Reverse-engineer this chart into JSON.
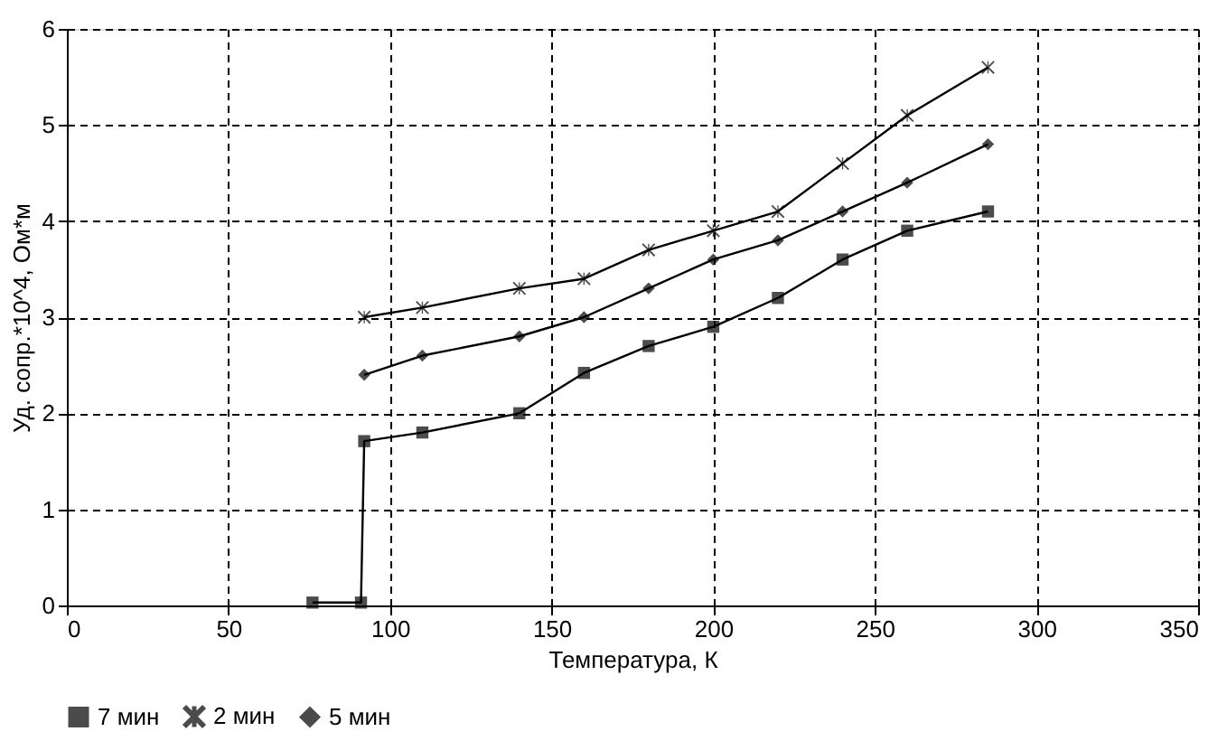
{
  "chart_data": {
    "type": "line",
    "xlabel": "Температура, К",
    "ylabel": "Уд. сопр.*10^4, Ом*м",
    "x": [
      76,
      91,
      92,
      110,
      140,
      160,
      180,
      200,
      220,
      240,
      260,
      285
    ],
    "xlim": [
      0,
      350
    ],
    "xticks": [
      0,
      50,
      100,
      150,
      200,
      250,
      300,
      350
    ],
    "ylim": [
      0,
      6
    ],
    "yticks": [
      0,
      1,
      2,
      3,
      4,
      5,
      6
    ],
    "grid": true,
    "legend": "bottom",
    "line_style": "solid",
    "series": [
      {
        "name": "7 мин",
        "color": "#000000",
        "marker": "square",
        "values": [
          0.03,
          0.03,
          1.71,
          1.8,
          2.0,
          2.42,
          2.7,
          2.9,
          3.2,
          3.6,
          3.9,
          4.1
        ]
      },
      {
        "name": "2 мин",
        "color": "#000000",
        "marker": "cross",
        "values": [
          null,
          null,
          3.0,
          3.1,
          3.3,
          3.4,
          3.7,
          3.9,
          4.1,
          4.6,
          5.1,
          5.6
        ]
      },
      {
        "name": "5 мин",
        "color": "#000000",
        "marker": "diamond",
        "values": [
          null,
          null,
          2.4,
          2.6,
          2.8,
          3.0,
          3.3,
          3.6,
          3.8,
          4.1,
          4.4,
          4.8
        ]
      }
    ]
  }
}
